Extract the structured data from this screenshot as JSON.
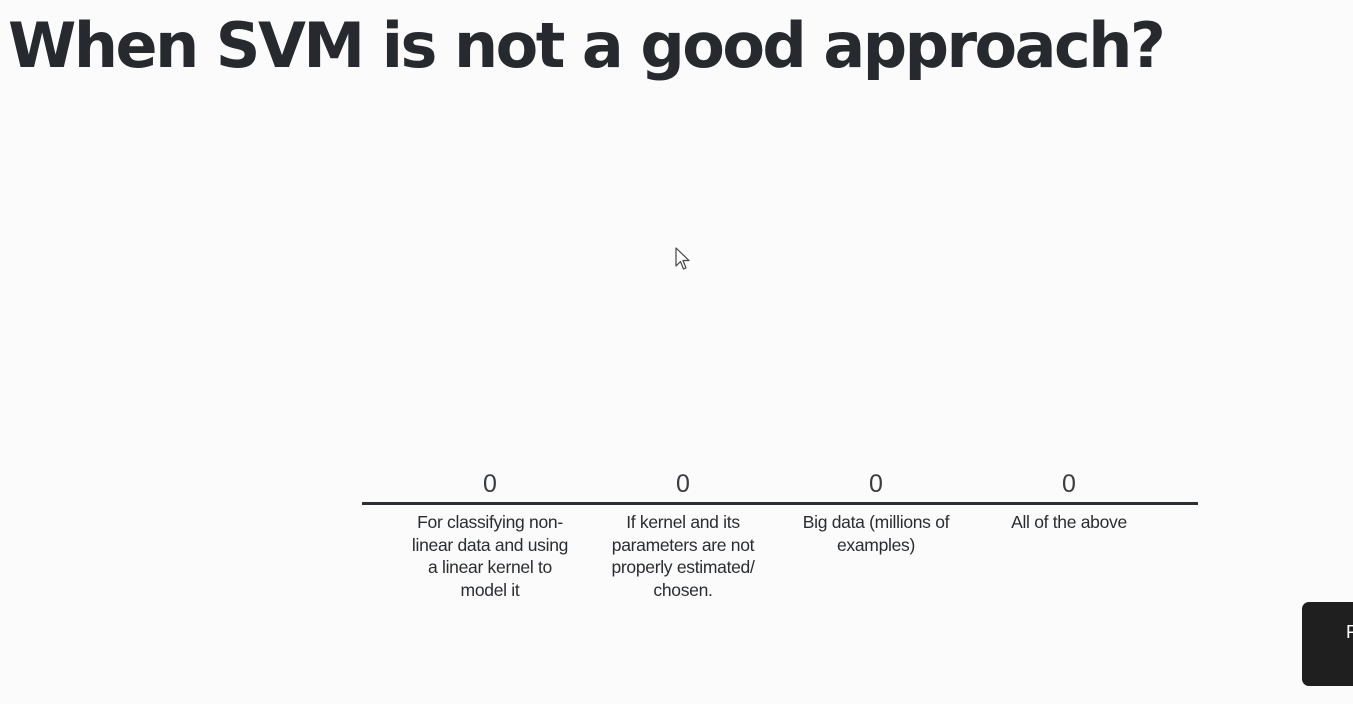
{
  "slide": {
    "title": "When SVM is not a good approach?"
  },
  "poll": {
    "options": [
      {
        "count": "0",
        "label": "For classifying non-linear data and using a linear kernel to model it"
      },
      {
        "count": "0",
        "label": "If kernel and its parameters are not properly estimated/ chosen."
      },
      {
        "count": "0",
        "label": "Big data (millions of examples)"
      },
      {
        "count": "0",
        "label": "All of the above"
      }
    ]
  },
  "overlay": {
    "button_label": "F"
  },
  "colors": {
    "background": "#fbfbfb",
    "title_text": "#262a2e",
    "baseline": "#2c3034",
    "button_background": "#1f1f1f"
  }
}
